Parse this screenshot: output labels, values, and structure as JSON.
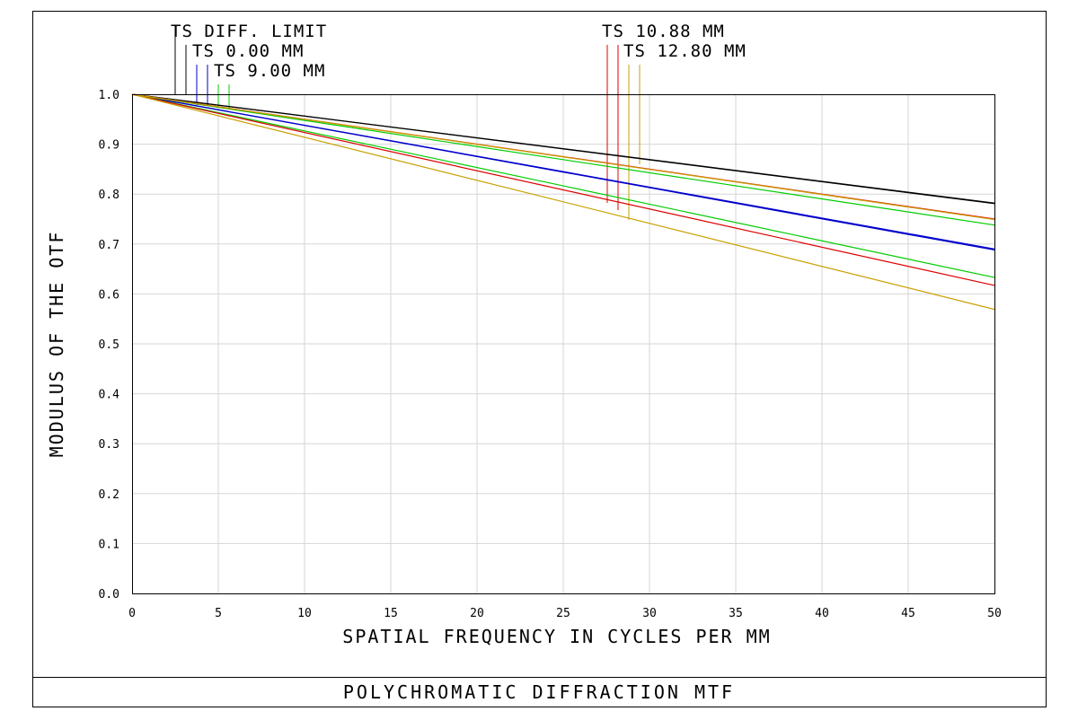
{
  "chart_data": {
    "type": "line",
    "title": "POLYCHROMATIC DIFFRACTION MTF",
    "xlabel": "SPATIAL FREQUENCY IN CYCLES PER MM",
    "ylabel": "MODULUS OF THE OTF",
    "xlim": [
      0,
      50
    ],
    "ylim": [
      0,
      1
    ],
    "grid": true,
    "x_ticks": [
      "0",
      "5",
      "10",
      "15",
      "20",
      "25",
      "30",
      "35",
      "40",
      "45",
      "50"
    ],
    "y_ticks": [
      "0.0",
      "0.1",
      "0.2",
      "0.3",
      "0.4",
      "0.5",
      "0.6",
      "0.7",
      "0.8",
      "0.9",
      "1.0"
    ],
    "legend": [
      {
        "label": "TS DIFF. LIMIT",
        "colors": [
          "#000000",
          "#000000"
        ]
      },
      {
        "label": "TS 0.00 MM",
        "colors": [
          "#0000cc",
          "#0000cc"
        ]
      },
      {
        "label": "TS 9.00 MM",
        "colors": [
          "#00cc00",
          "#00cc00"
        ]
      },
      {
        "label": "TS 10.88 MM",
        "colors": [
          "#dd0000",
          "#dd0000"
        ]
      },
      {
        "label": "TS 12.80 MM",
        "colors": [
          "#c8a000",
          "#c8a000"
        ]
      }
    ],
    "series": [
      {
        "name": "DIFF. LIMIT T",
        "color": "#000000",
        "x": [
          0,
          50
        ],
        "y": [
          1.0,
          0.782
        ]
      },
      {
        "name": "DIFF. LIMIT S",
        "color": "#000000",
        "x": [
          0,
          50
        ],
        "y": [
          1.0,
          0.781
        ]
      },
      {
        "name": "0.00 MM T",
        "color": "#0000cc",
        "x": [
          0,
          50
        ],
        "y": [
          1.0,
          0.69
        ]
      },
      {
        "name": "0.00 MM S",
        "color": "#0000cc",
        "x": [
          0,
          50
        ],
        "y": [
          1.0,
          0.688
        ]
      },
      {
        "name": "9.00 MM T",
        "color": "#00cc00",
        "x": [
          0,
          50
        ],
        "y": [
          1.0,
          0.738
        ]
      },
      {
        "name": "9.00 MM S",
        "color": "#00cc00",
        "x": [
          0,
          50
        ],
        "y": [
          1.0,
          0.633
        ]
      },
      {
        "name": "10.88 MM T",
        "color": "#dd0000",
        "x": [
          0,
          50
        ],
        "y": [
          1.0,
          0.75
        ]
      },
      {
        "name": "10.88 MM S",
        "color": "#dd0000",
        "x": [
          0,
          50
        ],
        "y": [
          1.0,
          0.617
        ]
      },
      {
        "name": "12.80 MM T",
        "color": "#c8a000",
        "x": [
          0,
          50
        ],
        "y": [
          1.0,
          0.749
        ]
      },
      {
        "name": "12.80 MM S",
        "color": "#c8a000",
        "x": [
          0,
          50
        ],
        "y": [
          1.0,
          0.569
        ]
      }
    ]
  }
}
